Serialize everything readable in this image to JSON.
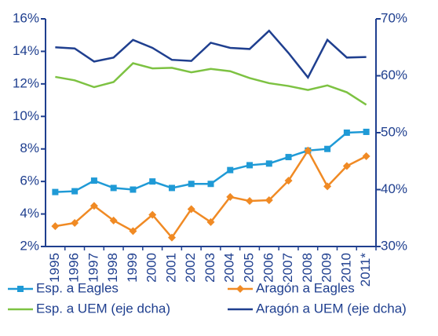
{
  "chart_data": {
    "type": "line",
    "categories": [
      "1995",
      "1996",
      "1997",
      "1998",
      "1999",
      "2000",
      "2001",
      "2002",
      "2003",
      "2004",
      "2005",
      "2006",
      "2007",
      "2008",
      "2009",
      "2010",
      "2011*"
    ],
    "series": [
      {
        "name": "Esp. a Eagles",
        "color": "#1f9ad6",
        "marker": "square",
        "values": [
          5.35,
          5.4,
          6.05,
          5.6,
          5.5,
          6.0,
          5.6,
          5.85,
          5.85,
          6.7,
          7.0,
          7.1,
          7.5,
          7.9,
          8.0,
          9.0,
          9.05
        ]
      },
      {
        "name": "Aragón a Eagles",
        "color": "#f08a24",
        "marker": "diamond",
        "values": [
          3.25,
          3.45,
          4.5,
          3.6,
          2.95,
          3.95,
          2.55,
          4.3,
          3.5,
          5.05,
          4.8,
          4.85,
          6.05,
          7.9,
          5.7,
          6.95,
          7.55
        ]
      },
      {
        "name": "Esp. a UEM (eje dcha)",
        "color": "#7dc242",
        "axis": "y2",
        "values": [
          59.8,
          59.2,
          58.0,
          58.9,
          62.2,
          61.3,
          61.4,
          60.6,
          61.2,
          60.8,
          59.6,
          58.7,
          58.2,
          57.5,
          58.3,
          57.1,
          54.9
        ]
      },
      {
        "name": "Aragón a UEM (eje dcha)",
        "color": "#1f3f8f",
        "axis": "y2",
        "values": [
          65.0,
          64.8,
          62.5,
          63.2,
          66.3,
          64.9,
          62.8,
          62.6,
          65.8,
          64.9,
          64.7,
          67.9,
          64.0,
          59.7,
          66.3,
          63.2,
          63.3
        ]
      }
    ],
    "ylim": [
      2,
      16
    ],
    "yticks": [
      {
        "value": 2,
        "label": "2%"
      },
      {
        "value": 4,
        "label": "4%"
      },
      {
        "value": 6,
        "label": "6%"
      },
      {
        "value": 8,
        "label": "8%"
      },
      {
        "value": 10,
        "label": "10%"
      },
      {
        "value": 12,
        "label": "12%"
      },
      {
        "value": 14,
        "label": "14%"
      },
      {
        "value": 16,
        "label": "16%"
      }
    ],
    "y2lim": [
      30,
      70
    ],
    "y2ticks": [
      {
        "value": 30,
        "label": "30%"
      },
      {
        "value": 40,
        "label": "40%"
      },
      {
        "value": 50,
        "label": "50%"
      },
      {
        "value": 60,
        "label": "60%"
      },
      {
        "value": 70,
        "label": "70%"
      }
    ]
  }
}
